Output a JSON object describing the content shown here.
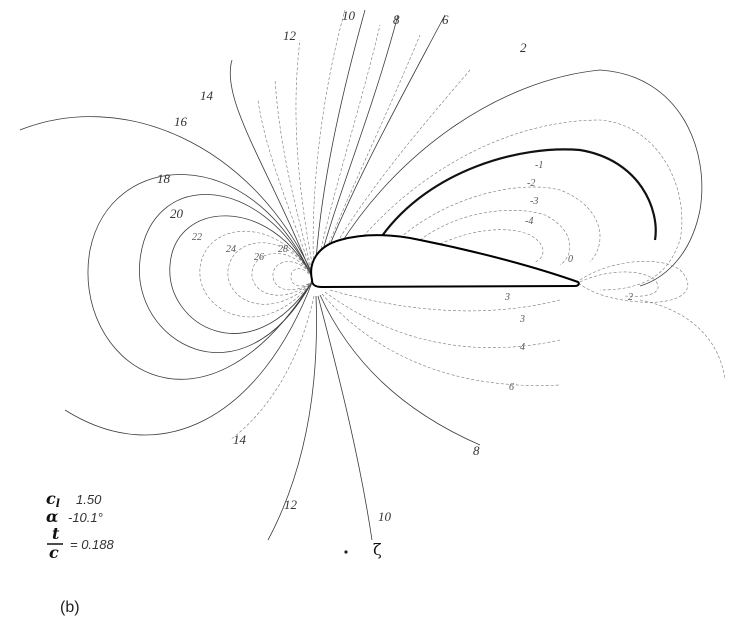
{
  "contour_labels": {
    "c10_top": "10",
    "c12_top": "12",
    "c8_top": "8",
    "c6_top": "6",
    "c2_top": "2",
    "c14_left": "14",
    "c16_left": "16",
    "c18_left": "18",
    "c20_left": "20",
    "c22_left": "22",
    "c24_left": "24",
    "c26_left": "26",
    "c28_left": "28",
    "cm1_upper": "-1",
    "cm2_upper": "-2",
    "cm3_upper": "-3",
    "cm4_upper": "-4",
    "c0_trailing": "0",
    "c2_trailing": "2",
    "c3_lower": "3",
    "c3_lower2": "3",
    "c4_lower": "4",
    "c6_lower": "6",
    "c8_bottom": "8",
    "c10_bottom": "10",
    "c12_bottom": "12",
    "c14_bottom": "14"
  },
  "legend": {
    "cl_key": "c",
    "cl_sub": "l",
    "cl_value": "1.50",
    "alpha_key": "α",
    "alpha_value": "-10.1°",
    "tc_num": "t",
    "tc_den": "c",
    "tc_value": "= 0.188"
  },
  "xi_symbol": "ζ",
  "panel_label": "(b)"
}
